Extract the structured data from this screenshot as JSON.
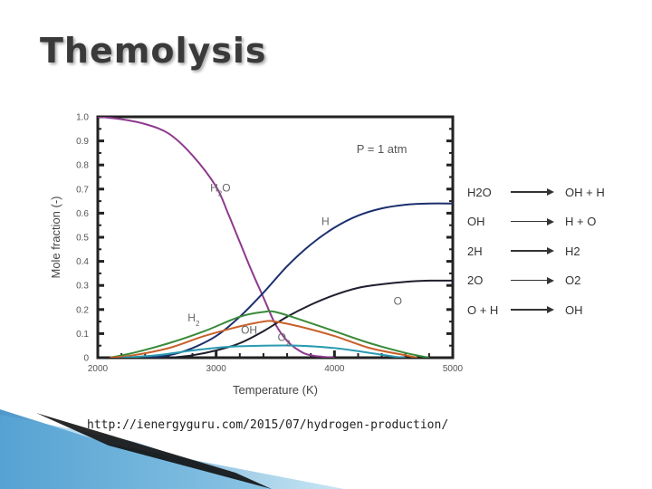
{
  "slide": {
    "title": "Themolysis",
    "source_url": "http://ienergyguru.com/2015/07/hydrogen-production/"
  },
  "chart_data": {
    "type": "line",
    "xlabel": "Temperature (K)",
    "ylabel": "Mole fraction (-)",
    "xlim": [
      2000,
      5000
    ],
    "ylim": [
      0,
      1.0
    ],
    "x_ticks": [
      "2000",
      "3000",
      "4000",
      "5000"
    ],
    "y_ticks": [
      "0",
      "0.1",
      "0.2",
      "0.3",
      "0.4",
      "0.5",
      "0.6",
      "0.7",
      "0.8",
      "0.9",
      "1.0"
    ],
    "annotation": "P = 1 atm",
    "grid": false,
    "series": [
      {
        "name": "H2O",
        "color": "#8e3a8e",
        "points": [
          [
            2000,
            1.0
          ],
          [
            2200,
            0.99
          ],
          [
            2400,
            0.97
          ],
          [
            2600,
            0.93
          ],
          [
            2800,
            0.84
          ],
          [
            3000,
            0.71
          ],
          [
            3100,
            0.6
          ],
          [
            3200,
            0.48
          ],
          [
            3300,
            0.36
          ],
          [
            3400,
            0.25
          ],
          [
            3500,
            0.14
          ],
          [
            3600,
            0.07
          ],
          [
            3700,
            0.03
          ],
          [
            3800,
            0.01
          ],
          [
            4000,
            0.0
          ]
        ]
      },
      {
        "name": "H",
        "color": "#1c2f6e",
        "points": [
          [
            2400,
            0.0
          ],
          [
            2600,
            0.01
          ],
          [
            2800,
            0.04
          ],
          [
            3000,
            0.09
          ],
          [
            3200,
            0.17
          ],
          [
            3400,
            0.27
          ],
          [
            3600,
            0.38
          ],
          [
            3800,
            0.47
          ],
          [
            4000,
            0.54
          ],
          [
            4200,
            0.59
          ],
          [
            4400,
            0.62
          ],
          [
            4600,
            0.635
          ],
          [
            4800,
            0.64
          ],
          [
            5000,
            0.64
          ]
        ]
      },
      {
        "name": "O",
        "color": "#1e1e2e",
        "points": [
          [
            2600,
            0.0
          ],
          [
            2800,
            0.01
          ],
          [
            3000,
            0.03
          ],
          [
            3200,
            0.06
          ],
          [
            3400,
            0.11
          ],
          [
            3600,
            0.17
          ],
          [
            3800,
            0.22
          ],
          [
            4000,
            0.26
          ],
          [
            4200,
            0.29
          ],
          [
            4400,
            0.305
          ],
          [
            4600,
            0.315
          ],
          [
            4800,
            0.32
          ],
          [
            5000,
            0.32
          ]
        ]
      },
      {
        "name": "H2",
        "color": "#3a8a3a",
        "points": [
          [
            2100,
            0.0
          ],
          [
            2300,
            0.02
          ],
          [
            2600,
            0.06
          ],
          [
            2900,
            0.11
          ],
          [
            3200,
            0.17
          ],
          [
            3400,
            0.19
          ],
          [
            3500,
            0.19
          ],
          [
            3700,
            0.16
          ],
          [
            4000,
            0.11
          ],
          [
            4300,
            0.06
          ],
          [
            4600,
            0.02
          ],
          [
            4800,
            0.0
          ]
        ]
      },
      {
        "name": "OH",
        "color": "#c8602a",
        "points": [
          [
            2100,
            0.0
          ],
          [
            2300,
            0.01
          ],
          [
            2600,
            0.04
          ],
          [
            2900,
            0.09
          ],
          [
            3200,
            0.13
          ],
          [
            3400,
            0.15
          ],
          [
            3500,
            0.15
          ],
          [
            3700,
            0.13
          ],
          [
            4000,
            0.09
          ],
          [
            4300,
            0.04
          ],
          [
            4600,
            0.01
          ],
          [
            4700,
            0.0
          ]
        ]
      },
      {
        "name": "O2",
        "color": "#2a9ab0",
        "points": [
          [
            2200,
            0.0
          ],
          [
            2500,
            0.01
          ],
          [
            2800,
            0.03
          ],
          [
            3100,
            0.045
          ],
          [
            3400,
            0.05
          ],
          [
            3700,
            0.05
          ],
          [
            4000,
            0.04
          ],
          [
            4300,
            0.02
          ],
          [
            4500,
            0.005
          ],
          [
            4600,
            0.0
          ]
        ]
      }
    ],
    "series_labels": [
      {
        "name": "H2O",
        "sub": "2",
        "pre": "H",
        "post": "O",
        "x": 2950,
        "y": 0.69
      },
      {
        "name": "H",
        "pre": "H",
        "x": 3890,
        "y": 0.55
      },
      {
        "name": "O",
        "pre": "O",
        "x": 4500,
        "y": 0.22
      },
      {
        "name": "H2",
        "pre": "H",
        "sub": "2",
        "x": 2760,
        "y": 0.15
      },
      {
        "name": "OH",
        "pre": "OH",
        "x": 3210,
        "y": 0.1
      },
      {
        "name": "O2",
        "pre": "O",
        "sub": "2",
        "x": 3520,
        "y": 0.07
      }
    ]
  },
  "reactions": [
    {
      "left": "H2O",
      "right": "OH + H"
    },
    {
      "left": "OH",
      "right": "H + O"
    },
    {
      "left": "2H",
      "right": "H2"
    },
    {
      "left": "2O",
      "right": "O2"
    },
    {
      "left": "O + H",
      "right": "OH"
    }
  ]
}
